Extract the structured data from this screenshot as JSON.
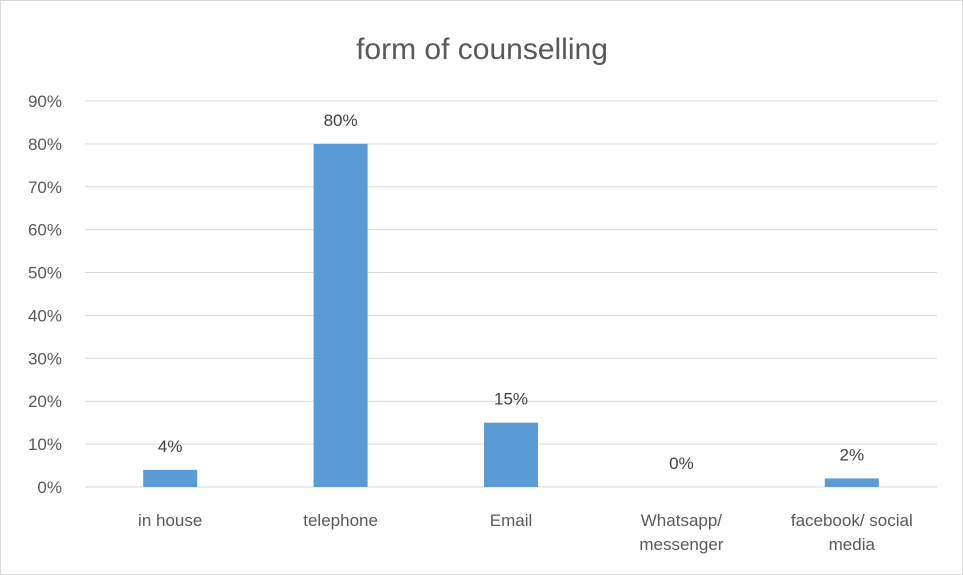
{
  "chart_data": {
    "type": "bar",
    "title": "form of counselling",
    "xlabel": "",
    "ylabel": "",
    "categories": [
      [
        "in house"
      ],
      [
        "telephone"
      ],
      [
        "Email"
      ],
      [
        "Whatsapp/",
        "messenger"
      ],
      [
        "facebook/ social",
        "media"
      ]
    ],
    "values": [
      4,
      80,
      15,
      0,
      2
    ],
    "data_labels": [
      "4%",
      "80%",
      "15%",
      "0%",
      "2%"
    ],
    "ylim": [
      0,
      90
    ],
    "y_ticks": [
      0,
      10,
      20,
      30,
      40,
      50,
      60,
      70,
      80,
      90
    ],
    "y_tick_labels": [
      "0%",
      "10%",
      "20%",
      "30%",
      "40%",
      "50%",
      "60%",
      "70%",
      "80%",
      "90%"
    ],
    "grid": true,
    "legend": "none",
    "colors": {
      "bar": "#5b9bd5",
      "grid": "#d9d9d9",
      "axis": "#d9d9d9"
    }
  }
}
